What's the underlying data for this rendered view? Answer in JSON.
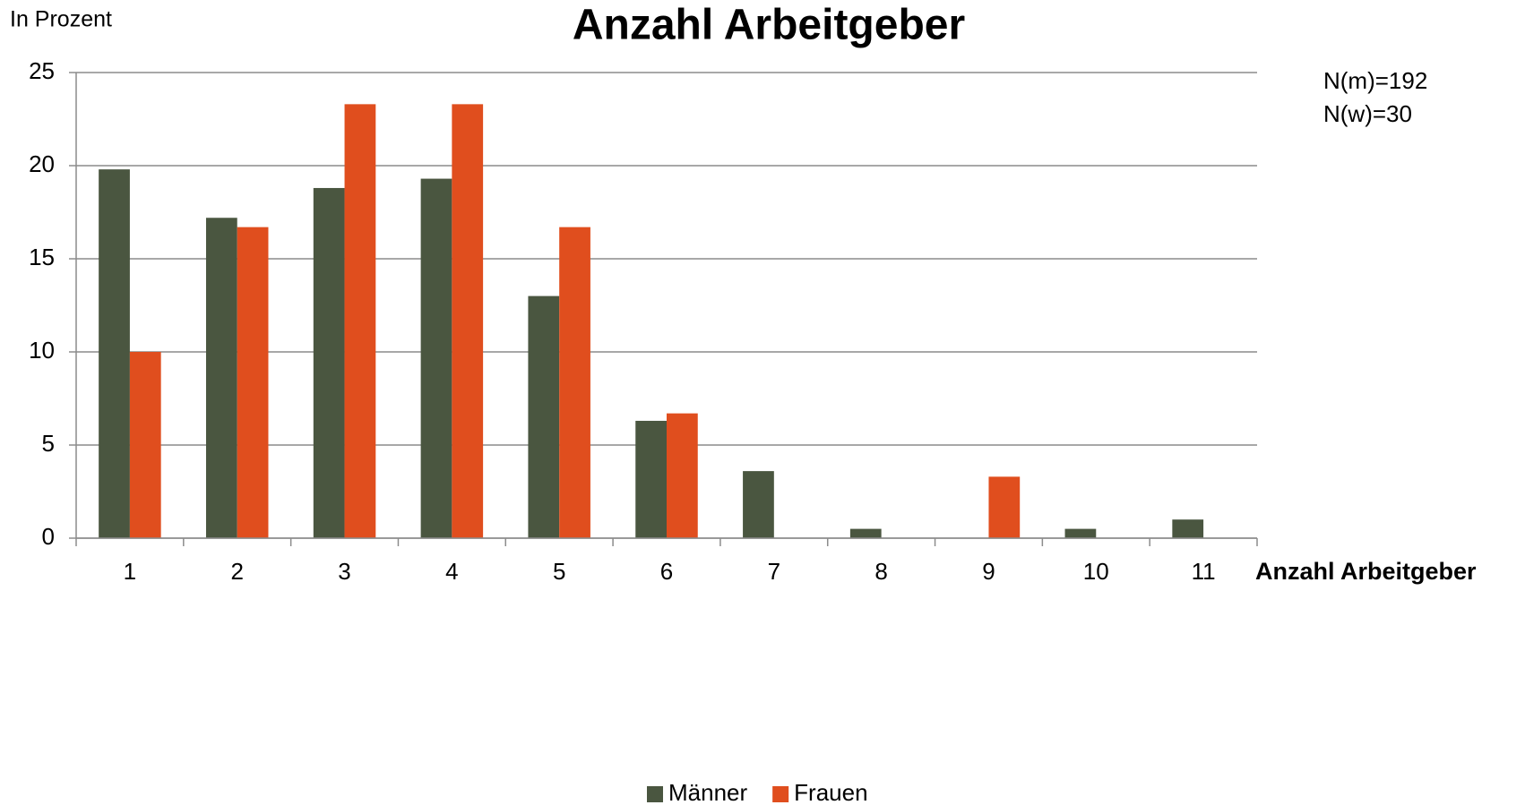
{
  "chart_data": {
    "type": "bar",
    "title": "Anzahl Arbeitgeber",
    "y_label": "In Prozent",
    "x_label": "Anzahl Arbeitgeber",
    "annotations": [
      "N(m)=192",
      "N(w)=30"
    ],
    "categories": [
      "1",
      "2",
      "3",
      "4",
      "5",
      "6",
      "7",
      "8",
      "9",
      "10",
      "11"
    ],
    "series": [
      {
        "name": "Männer",
        "color": "#4a5640",
        "values": [
          19.8,
          17.2,
          18.8,
          19.3,
          13.0,
          6.3,
          3.6,
          0.5,
          0,
          0.5,
          1.0
        ]
      },
      {
        "name": "Frauen",
        "color": "#e04e1e",
        "values": [
          10,
          16.7,
          23.3,
          23.3,
          16.7,
          6.7,
          0,
          0,
          3.3,
          0,
          0
        ]
      }
    ],
    "ylim": [
      0,
      25
    ],
    "yticks": [
      0,
      5,
      10,
      15,
      20,
      25
    ],
    "grid": true,
    "legend": "bottom"
  }
}
